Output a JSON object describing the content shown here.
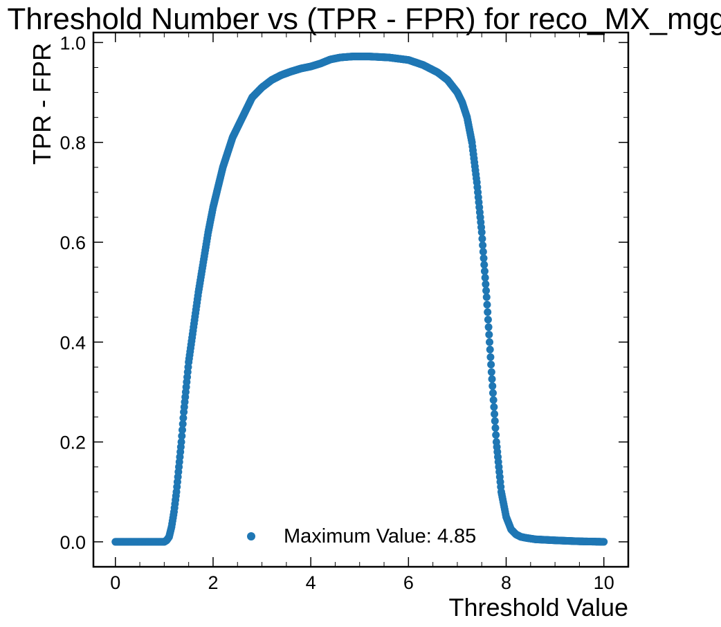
{
  "chart_data": {
    "type": "scatter",
    "title": "Threshold Number vs (TPR - FPR) for reco_MX_mgg",
    "xlabel": "Threshold Value",
    "ylabel": "TPR - FPR",
    "xlim": [
      -0.45,
      10.5
    ],
    "ylim": [
      -0.05,
      1.02
    ],
    "xticks": [
      0,
      2,
      4,
      6,
      8,
      10
    ],
    "xtick_labels": [
      "0",
      "2",
      "4",
      "6",
      "8",
      "10"
    ],
    "yticks": [
      0.0,
      0.2,
      0.4,
      0.6,
      0.8,
      1.0
    ],
    "ytick_labels": [
      "0.0",
      "0.2",
      "0.4",
      "0.6",
      "0.8",
      "1.0"
    ],
    "grid": false,
    "legend_position": "lower-center",
    "series": [
      {
        "name": "Maximum Value: 4.85",
        "color": "#1f77b4",
        "x": [
          0.0,
          0.2,
          0.4,
          0.6,
          0.8,
          1.0,
          1.05,
          1.1,
          1.15,
          1.2,
          1.25,
          1.3,
          1.35,
          1.4,
          1.45,
          1.5,
          1.6,
          1.7,
          1.8,
          1.9,
          2.0,
          2.1,
          2.2,
          2.3,
          2.4,
          2.5,
          2.6,
          2.7,
          2.8,
          3.0,
          3.2,
          3.4,
          3.6,
          3.8,
          4.0,
          4.2,
          4.3,
          4.4,
          4.5,
          4.6,
          4.85,
          5.2,
          5.6,
          6.0,
          6.3,
          6.6,
          6.8,
          7.0,
          7.1,
          7.2,
          7.3,
          7.4,
          7.5,
          7.6,
          7.7,
          7.8,
          7.9,
          8.0,
          8.1,
          8.2,
          8.3,
          8.4,
          8.6,
          8.8,
          9.0,
          9.5,
          10.0
        ],
        "y": [
          0.0,
          0.0,
          0.0,
          0.0,
          0.0,
          0.0,
          0.003,
          0.01,
          0.03,
          0.06,
          0.1,
          0.15,
          0.2,
          0.26,
          0.31,
          0.36,
          0.43,
          0.5,
          0.56,
          0.62,
          0.67,
          0.71,
          0.75,
          0.78,
          0.81,
          0.83,
          0.85,
          0.87,
          0.89,
          0.91,
          0.925,
          0.935,
          0.942,
          0.948,
          0.952,
          0.958,
          0.962,
          0.966,
          0.968,
          0.97,
          0.972,
          0.972,
          0.97,
          0.965,
          0.955,
          0.94,
          0.925,
          0.9,
          0.88,
          0.85,
          0.8,
          0.72,
          0.62,
          0.49,
          0.34,
          0.2,
          0.1,
          0.05,
          0.025,
          0.015,
          0.01,
          0.008,
          0.005,
          0.004,
          0.003,
          0.001,
          0.0
        ]
      }
    ]
  }
}
